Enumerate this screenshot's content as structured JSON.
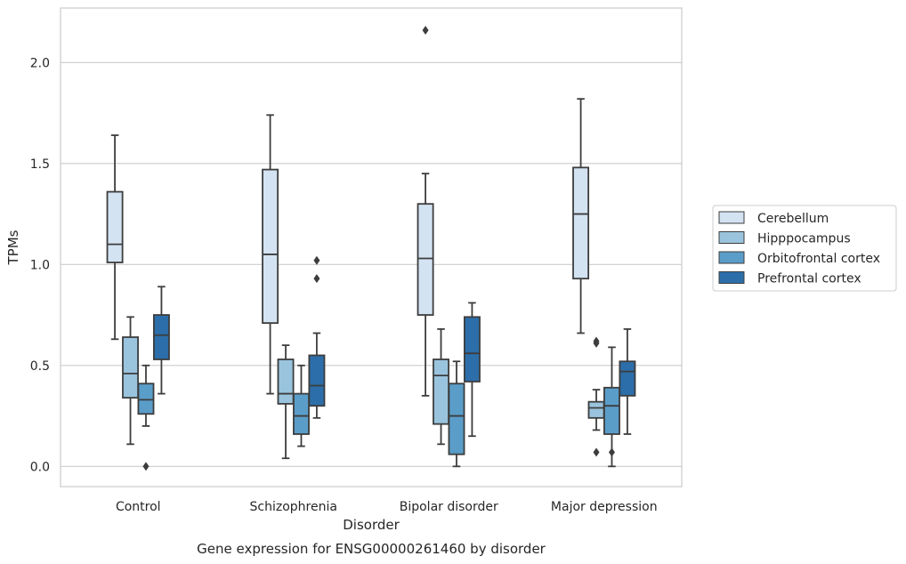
{
  "chart_data": {
    "type": "box",
    "title": "",
    "caption": "Gene expression for ENSG00000261460 by disorder",
    "xlabel": "Disorder",
    "ylabel": "TPMs",
    "ylim": [
      -0.1,
      2.27
    ],
    "yticks": [
      "0.0",
      "0.5",
      "1.0",
      "1.5",
      "2.0"
    ],
    "ytick_values": [
      0.0,
      0.5,
      1.0,
      1.5,
      2.0
    ],
    "grid": "horizontal",
    "legend_position": "right",
    "categories": [
      "Control",
      "Schizophrenia",
      "Bipolar disorder",
      "Major depression"
    ],
    "series": [
      {
        "name": "Cerebellum",
        "color": "#d3e3f2",
        "boxes": [
          {
            "whislo": 0.63,
            "q1": 1.01,
            "med": 1.1,
            "q3": 1.36,
            "whishi": 1.64,
            "fliers": []
          },
          {
            "whislo": 0.36,
            "q1": 0.71,
            "med": 1.05,
            "q3": 1.47,
            "whishi": 1.74,
            "fliers": []
          },
          {
            "whislo": 0.35,
            "q1": 0.75,
            "med": 1.03,
            "q3": 1.3,
            "whishi": 1.45,
            "fliers": [
              2.16
            ]
          },
          {
            "whislo": 0.66,
            "q1": 0.93,
            "med": 1.25,
            "q3": 1.48,
            "whishi": 1.82,
            "fliers": []
          }
        ]
      },
      {
        "name": "Hipppocampus",
        "color": "#9ac4de",
        "boxes": [
          {
            "whislo": 0.11,
            "q1": 0.34,
            "med": 0.46,
            "q3": 0.64,
            "whishi": 0.74,
            "fliers": []
          },
          {
            "whislo": 0.04,
            "q1": 0.31,
            "med": 0.36,
            "q3": 0.53,
            "whishi": 0.6,
            "fliers": []
          },
          {
            "whislo": 0.11,
            "q1": 0.21,
            "med": 0.45,
            "q3": 0.53,
            "whishi": 0.68,
            "fliers": []
          },
          {
            "whislo": 0.18,
            "q1": 0.24,
            "med": 0.29,
            "q3": 0.32,
            "whishi": 0.38,
            "fliers": [
              0.07,
              0.61,
              0.62
            ]
          }
        ]
      },
      {
        "name": "Orbitofrontal cortex",
        "color": "#5a9dc9",
        "boxes": [
          {
            "whislo": 0.2,
            "q1": 0.26,
            "med": 0.33,
            "q3": 0.41,
            "whishi": 0.5,
            "fliers": [
              0.0
            ]
          },
          {
            "whislo": 0.1,
            "q1": 0.16,
            "med": 0.25,
            "q3": 0.36,
            "whishi": 0.5,
            "fliers": []
          },
          {
            "whislo": 0.0,
            "q1": 0.06,
            "med": 0.25,
            "q3": 0.41,
            "whishi": 0.52,
            "fliers": []
          },
          {
            "whislo": 0.0,
            "q1": 0.16,
            "med": 0.3,
            "q3": 0.39,
            "whishi": 0.59,
            "fliers": [
              0.07
            ]
          }
        ]
      },
      {
        "name": "Prefrontal cortex",
        "color": "#2c6ea9",
        "boxes": [
          {
            "whislo": 0.36,
            "q1": 0.53,
            "med": 0.65,
            "q3": 0.75,
            "whishi": 0.89,
            "fliers": []
          },
          {
            "whislo": 0.24,
            "q1": 0.3,
            "med": 0.4,
            "q3": 0.55,
            "whishi": 0.66,
            "fliers": [
              0.93,
              1.02
            ]
          },
          {
            "whislo": 0.15,
            "q1": 0.42,
            "med": 0.56,
            "q3": 0.74,
            "whishi": 0.81,
            "fliers": []
          },
          {
            "whislo": 0.16,
            "q1": 0.35,
            "med": 0.47,
            "q3": 0.52,
            "whishi": 0.68,
            "fliers": []
          }
        ]
      }
    ]
  }
}
